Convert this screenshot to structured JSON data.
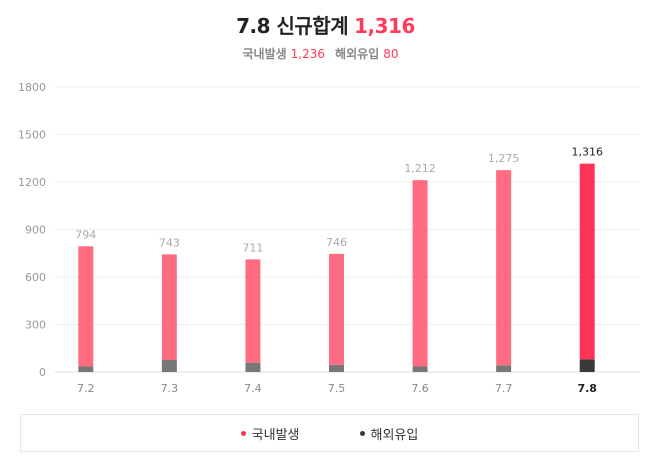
{
  "header": {
    "title": "7.8 신규합계",
    "total": "1,316",
    "domestic_label": "국내발생",
    "domestic_value": "1,236",
    "overseas_label": "해외유입",
    "overseas_value": "80"
  },
  "legend": {
    "domestic": "국내발생",
    "overseas": "해외유입"
  },
  "colors": {
    "domestic": "#ff6b81",
    "domestic_highlight": "#ff3355",
    "overseas": "#777777",
    "overseas_highlight": "#3a3a3a",
    "grid": "#eeeeee",
    "axis_text": "#999999"
  },
  "chart_data": {
    "type": "bar",
    "stacked": true,
    "categories": [
      "7.2",
      "7.3",
      "7.4",
      "7.5",
      "7.6",
      "7.7",
      "7.8"
    ],
    "series": [
      {
        "name": "국내발생",
        "values": [
          759,
          667,
          652,
          701,
          1177,
          1233,
          1236
        ]
      },
      {
        "name": "해외유입",
        "values": [
          35,
          76,
          59,
          45,
          35,
          42,
          80
        ]
      }
    ],
    "total_labels": [
      "794",
      "743",
      "711",
      "746",
      "1,212",
      "1,275",
      "1,316"
    ],
    "totals": [
      794,
      743,
      711,
      746,
      1212,
      1275,
      1316
    ],
    "yticks": [
      0,
      300,
      600,
      900,
      1200,
      1500,
      1800
    ],
    "ylim": [
      0,
      1800
    ],
    "highlight_index": 6,
    "grid": true,
    "legend_position": "bottom"
  }
}
